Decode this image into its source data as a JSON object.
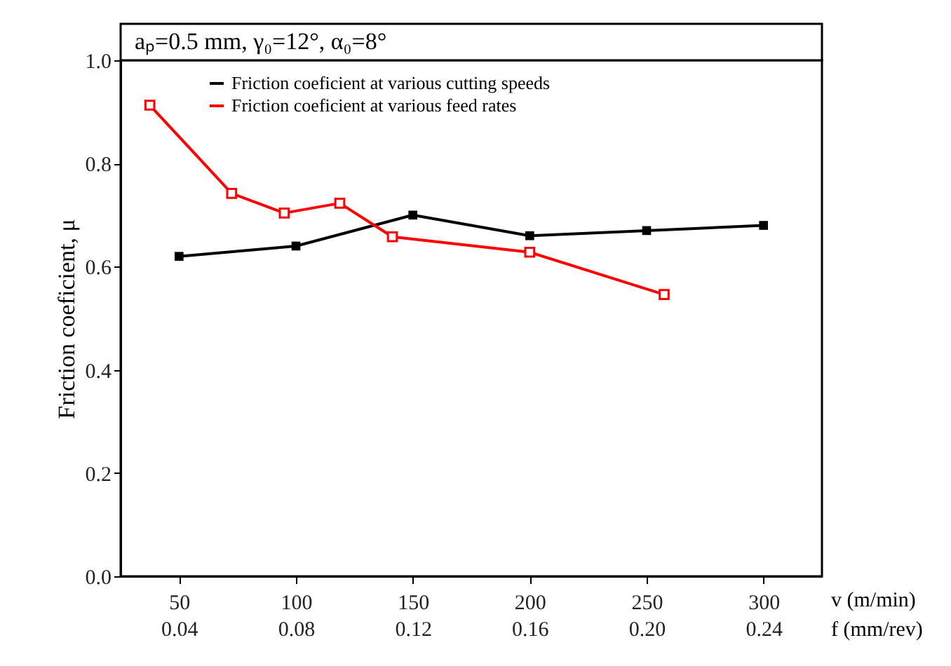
{
  "chart_data": {
    "type": "line",
    "title": "aₚ=0.5 mm, γ₀=12°, α₀=8°",
    "xlabel": "v (m/min)",
    "x2label": "f (mm/rev)",
    "ylabel": "Friction coeficient, μ",
    "xlim": [
      25,
      325
    ],
    "xticks": [
      50,
      100,
      150,
      200,
      250,
      300
    ],
    "x2lim": [
      0.02,
      0.26
    ],
    "x2ticks": [
      0.04,
      0.08,
      0.12,
      {
        "value": 0.16,
        "label": "0.16"
      },
      {
        "value": 0.2,
        "label": "0.20"
      },
      0.24
    ],
    "ylim": [
      0,
      1.0
    ],
    "yticks": [
      {
        "value": 0,
        "label": "0.0"
      },
      0.2,
      0.4,
      0.6,
      0.8,
      {
        "value": 1.0,
        "label": "1.0"
      }
    ],
    "grid": false,
    "legend": "top left",
    "marker": "square",
    "line_style": "solid",
    "series": [
      {
        "name": "Friction coeficient at various cutting speeds",
        "color": "#000000",
        "x": [
          50,
          100,
          150,
          200,
          250,
          300
        ],
        "values": [
          0.62,
          0.64,
          0.7,
          0.66,
          0.67,
          0.68
        ]
      },
      {
        "name": "Friction coeficient at various feed rates",
        "color": "#ff0000",
        "axis": "x2",
        "x": [
          0.03,
          0.058,
          0.076,
          0.095,
          0.113,
          0.16,
          0.206
        ],
        "values": [
          0.913,
          0.742,
          0.704,
          0.723,
          0.658,
          0.628,
          0.546
        ]
      }
    ]
  }
}
